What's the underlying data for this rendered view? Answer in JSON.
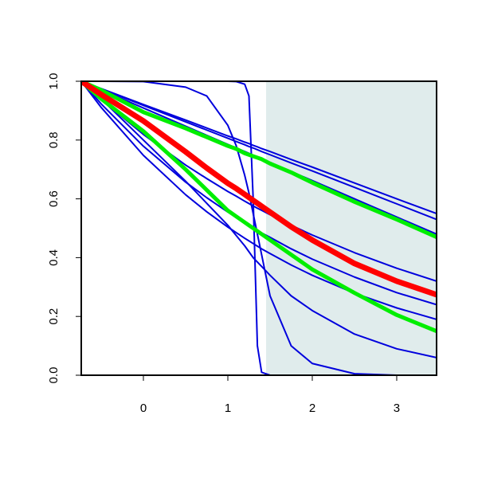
{
  "chart_data": {
    "type": "line",
    "x": [
      -0.736,
      -0.5,
      0,
      0.5,
      0.75,
      1,
      1.1,
      1.2,
      1.25,
      1.3,
      1.35,
      1.4,
      1.5,
      1.75,
      2,
      2.5,
      3,
      3.472
    ],
    "series": [
      {
        "color": "#0000dd",
        "width": 2,
        "values": [
          1,
          1,
          1,
          1,
          1,
          1,
          0.999,
          0.99,
          0.95,
          0.6,
          0.1,
          0.01,
          0,
          0,
          0,
          0,
          0,
          0
        ]
      },
      {
        "color": "#0000dd",
        "width": 2,
        "values": [
          1,
          1,
          0.999,
          0.98,
          0.95,
          0.85,
          0.78,
          0.68,
          0.62,
          0.55,
          0.48,
          0.41,
          0.27,
          0.1,
          0.04,
          0.005,
          0,
          0
        ]
      },
      {
        "color": "#0000dd",
        "width": 2,
        "values": [
          1,
          0.94,
          0.8,
          0.66,
          0.585,
          0.51,
          0.475,
          0.44,
          0.42,
          0.4,
          0.385,
          0.37,
          0.34,
          0.27,
          0.22,
          0.14,
          0.09,
          0.06
        ]
      },
      {
        "color": "#0000dd",
        "width": 2,
        "values": [
          1,
          0.975,
          0.921,
          0.868,
          0.841,
          0.814,
          0.804,
          0.793,
          0.788,
          0.782,
          0.777,
          0.771,
          0.761,
          0.734,
          0.708,
          0.654,
          0.6,
          0.55
        ]
      },
      {
        "color": "#0000dd",
        "width": 2,
        "values": [
          1,
          0.974,
          0.918,
          0.862,
          0.834,
          0.806,
          0.795,
          0.784,
          0.778,
          0.773,
          0.767,
          0.761,
          0.75,
          0.722,
          0.695,
          0.639,
          0.583,
          0.53
        ]
      },
      {
        "color": "#0000dd",
        "width": 2,
        "values": [
          1,
          0.971,
          0.909,
          0.847,
          0.816,
          0.785,
          0.773,
          0.761,
          0.755,
          0.748,
          0.742,
          0.736,
          0.724,
          0.693,
          0.662,
          0.6,
          0.538,
          0.48
        ]
      },
      {
        "color": "#0000dd",
        "width": 2,
        "values": [
          1,
          0.938,
          0.819,
          0.715,
          0.669,
          0.625,
          0.609,
          0.592,
          0.584,
          0.576,
          0.568,
          0.561,
          0.546,
          0.51,
          0.477,
          0.417,
          0.364,
          0.32
        ]
      },
      {
        "color": "#0000dd",
        "width": 2,
        "values": [
          1,
          0.923,
          0.779,
          0.657,
          0.604,
          0.555,
          0.537,
          0.519,
          0.51,
          0.501,
          0.493,
          0.484,
          0.469,
          0.43,
          0.395,
          0.334,
          0.281,
          0.24
        ]
      },
      {
        "color": "#0000dd",
        "width": 2,
        "values": [
          1,
          0.911,
          0.748,
          0.614,
          0.556,
          0.504,
          0.485,
          0.466,
          0.457,
          0.448,
          0.439,
          0.43,
          0.414,
          0.375,
          0.34,
          0.279,
          0.229,
          0.19
        ]
      },
      {
        "color": "#00ee00",
        "width": 5,
        "values": [
          1,
          0.97,
          0.895,
          0.84,
          0.81,
          0.78,
          0.77,
          0.755,
          0.75,
          0.745,
          0.74,
          0.735,
          0.72,
          0.69,
          0.655,
          0.59,
          0.53,
          0.47
        ]
      },
      {
        "color": "#00ee00",
        "width": 5,
        "values": [
          1,
          0.94,
          0.83,
          0.7,
          0.63,
          0.56,
          0.54,
          0.52,
          0.51,
          0.5,
          0.49,
          0.48,
          0.46,
          0.41,
          0.36,
          0.28,
          0.205,
          0.15
        ]
      },
      {
        "color": "#ff0000",
        "width": 7,
        "values": [
          1,
          0.955,
          0.865,
          0.76,
          0.705,
          0.653,
          0.635,
          0.615,
          0.605,
          0.595,
          0.585,
          0.575,
          0.555,
          0.505,
          0.46,
          0.38,
          0.32,
          0.274
        ]
      }
    ],
    "shaded_region": [
      1.453,
      3.472
    ],
    "shade_color": "#e0ecec",
    "xlim": [
      -0.736,
      3.472
    ],
    "ylim": [
      0,
      1
    ],
    "xticks": [
      0,
      1,
      2,
      3
    ],
    "yticks": [
      {
        "value": 0,
        "label": "0.0"
      },
      0.2,
      0.4,
      0.6,
      0.8,
      {
        "value": 1,
        "label": "1.0"
      }
    ]
  }
}
